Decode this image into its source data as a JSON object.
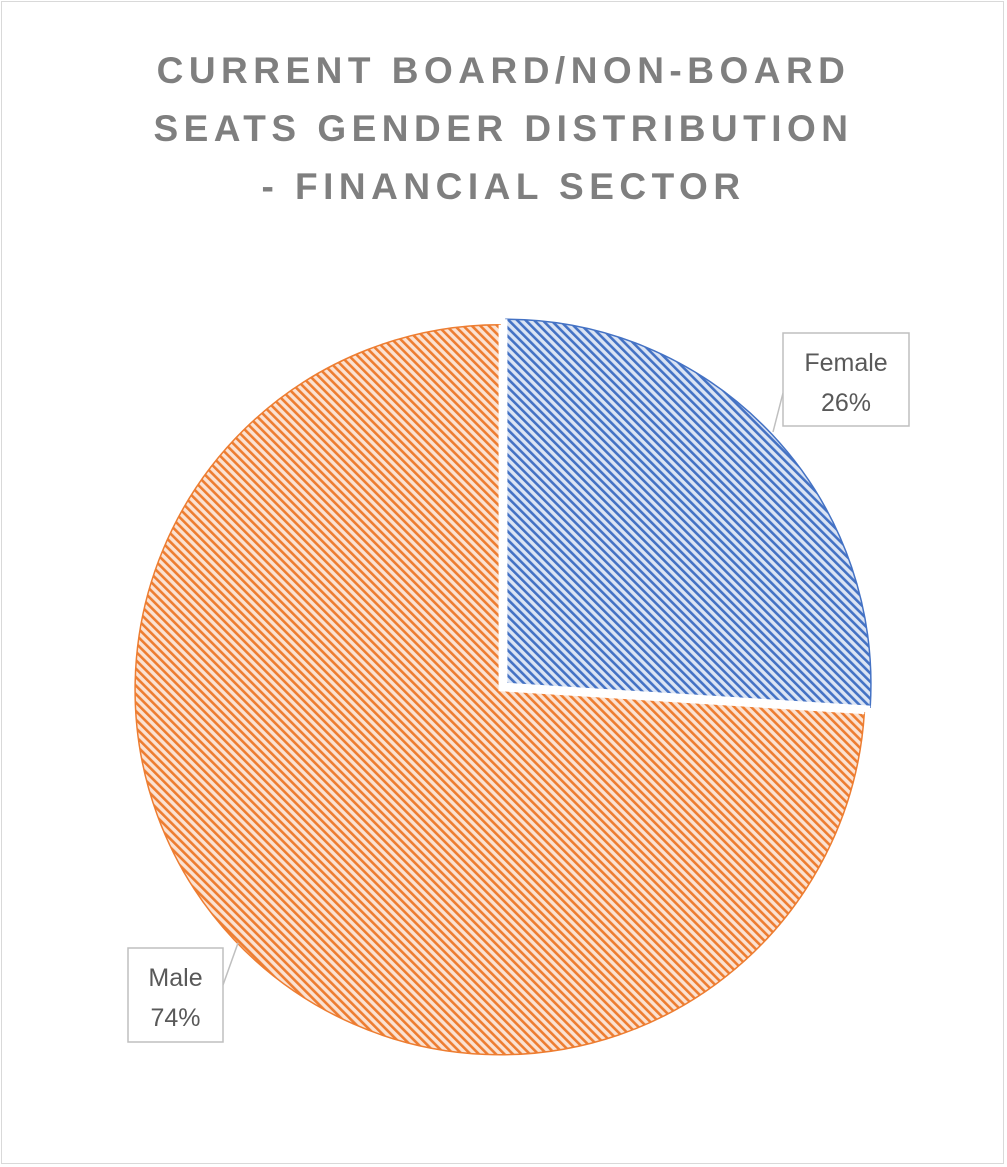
{
  "chart_data": {
    "type": "pie",
    "title_lines": [
      "CURRENT BOARD/NON-BOARD",
      "SEATS GENDER DISTRIBUTION",
      "- FINANCIAL SECTOR"
    ],
    "slices": [
      {
        "name": "Female",
        "value": 26,
        "label_value": "26%",
        "color": "#4472c4",
        "light_color": "#dbe4f4"
      },
      {
        "name": "Male",
        "value": 74,
        "label_value": "74%",
        "color": "#ed7d31",
        "light_color": "#fbe2d2"
      }
    ],
    "start_angle": "12 o'clock, clockwise",
    "legend": "none",
    "fill_pattern": "diagonal stripes"
  }
}
